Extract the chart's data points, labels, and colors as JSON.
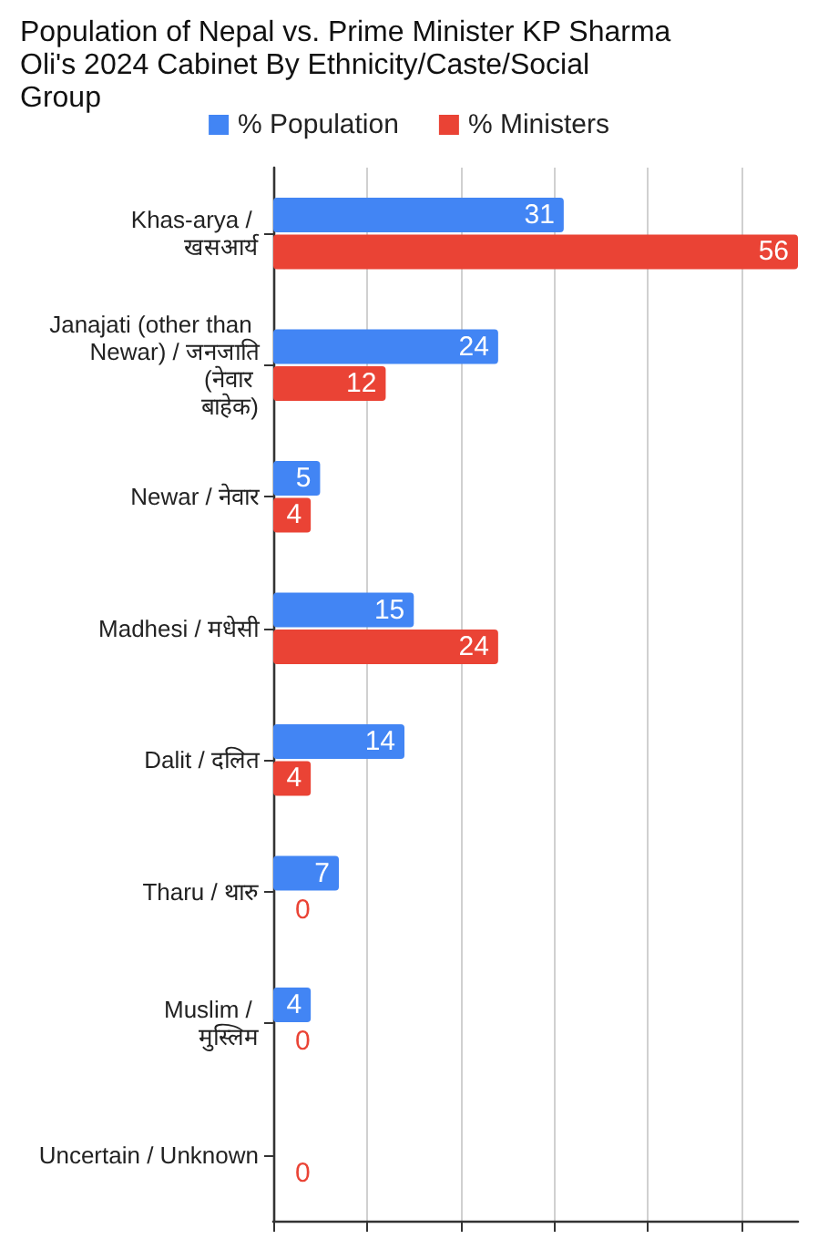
{
  "chart_data": {
    "type": "bar",
    "orientation": "horizontal",
    "title": "Population of Nepal vs. Prime Minister KP Sharma Oli's 2024 Cabinet By Ethnicity/Caste/Social Group",
    "categories": [
      "Khas-arya / खसआर्य",
      "Janajati (other than Newar) / जनजाति (नेवार बाहेक)",
      "Newar / नेवार",
      "Madhesi / मधेसी",
      "Dalit / दलित",
      "Tharu / थारु",
      "Muslim / मुस्लिम",
      "Uncertain / Unknown"
    ],
    "series": [
      {
        "name": "% Population",
        "color": "#4285f4",
        "values": [
          31,
          24,
          5,
          15,
          14,
          7,
          4,
          null
        ]
      },
      {
        "name": "% Ministers",
        "color": "#ea4335",
        "values": [
          56,
          12,
          4,
          24,
          4,
          0,
          0,
          0
        ]
      }
    ],
    "xlim": [
      0,
      56
    ],
    "xticks": [
      {
        "value": 0,
        "label": null
      },
      {
        "value": 10,
        "label": null
      },
      {
        "value": 20,
        "label": null
      },
      {
        "value": 30,
        "label": null
      },
      {
        "value": 40,
        "label": null
      },
      {
        "value": 50,
        "label": null
      }
    ],
    "tick_labels": "y",
    "grid": "x",
    "legend": "top",
    "data_labels": true
  }
}
